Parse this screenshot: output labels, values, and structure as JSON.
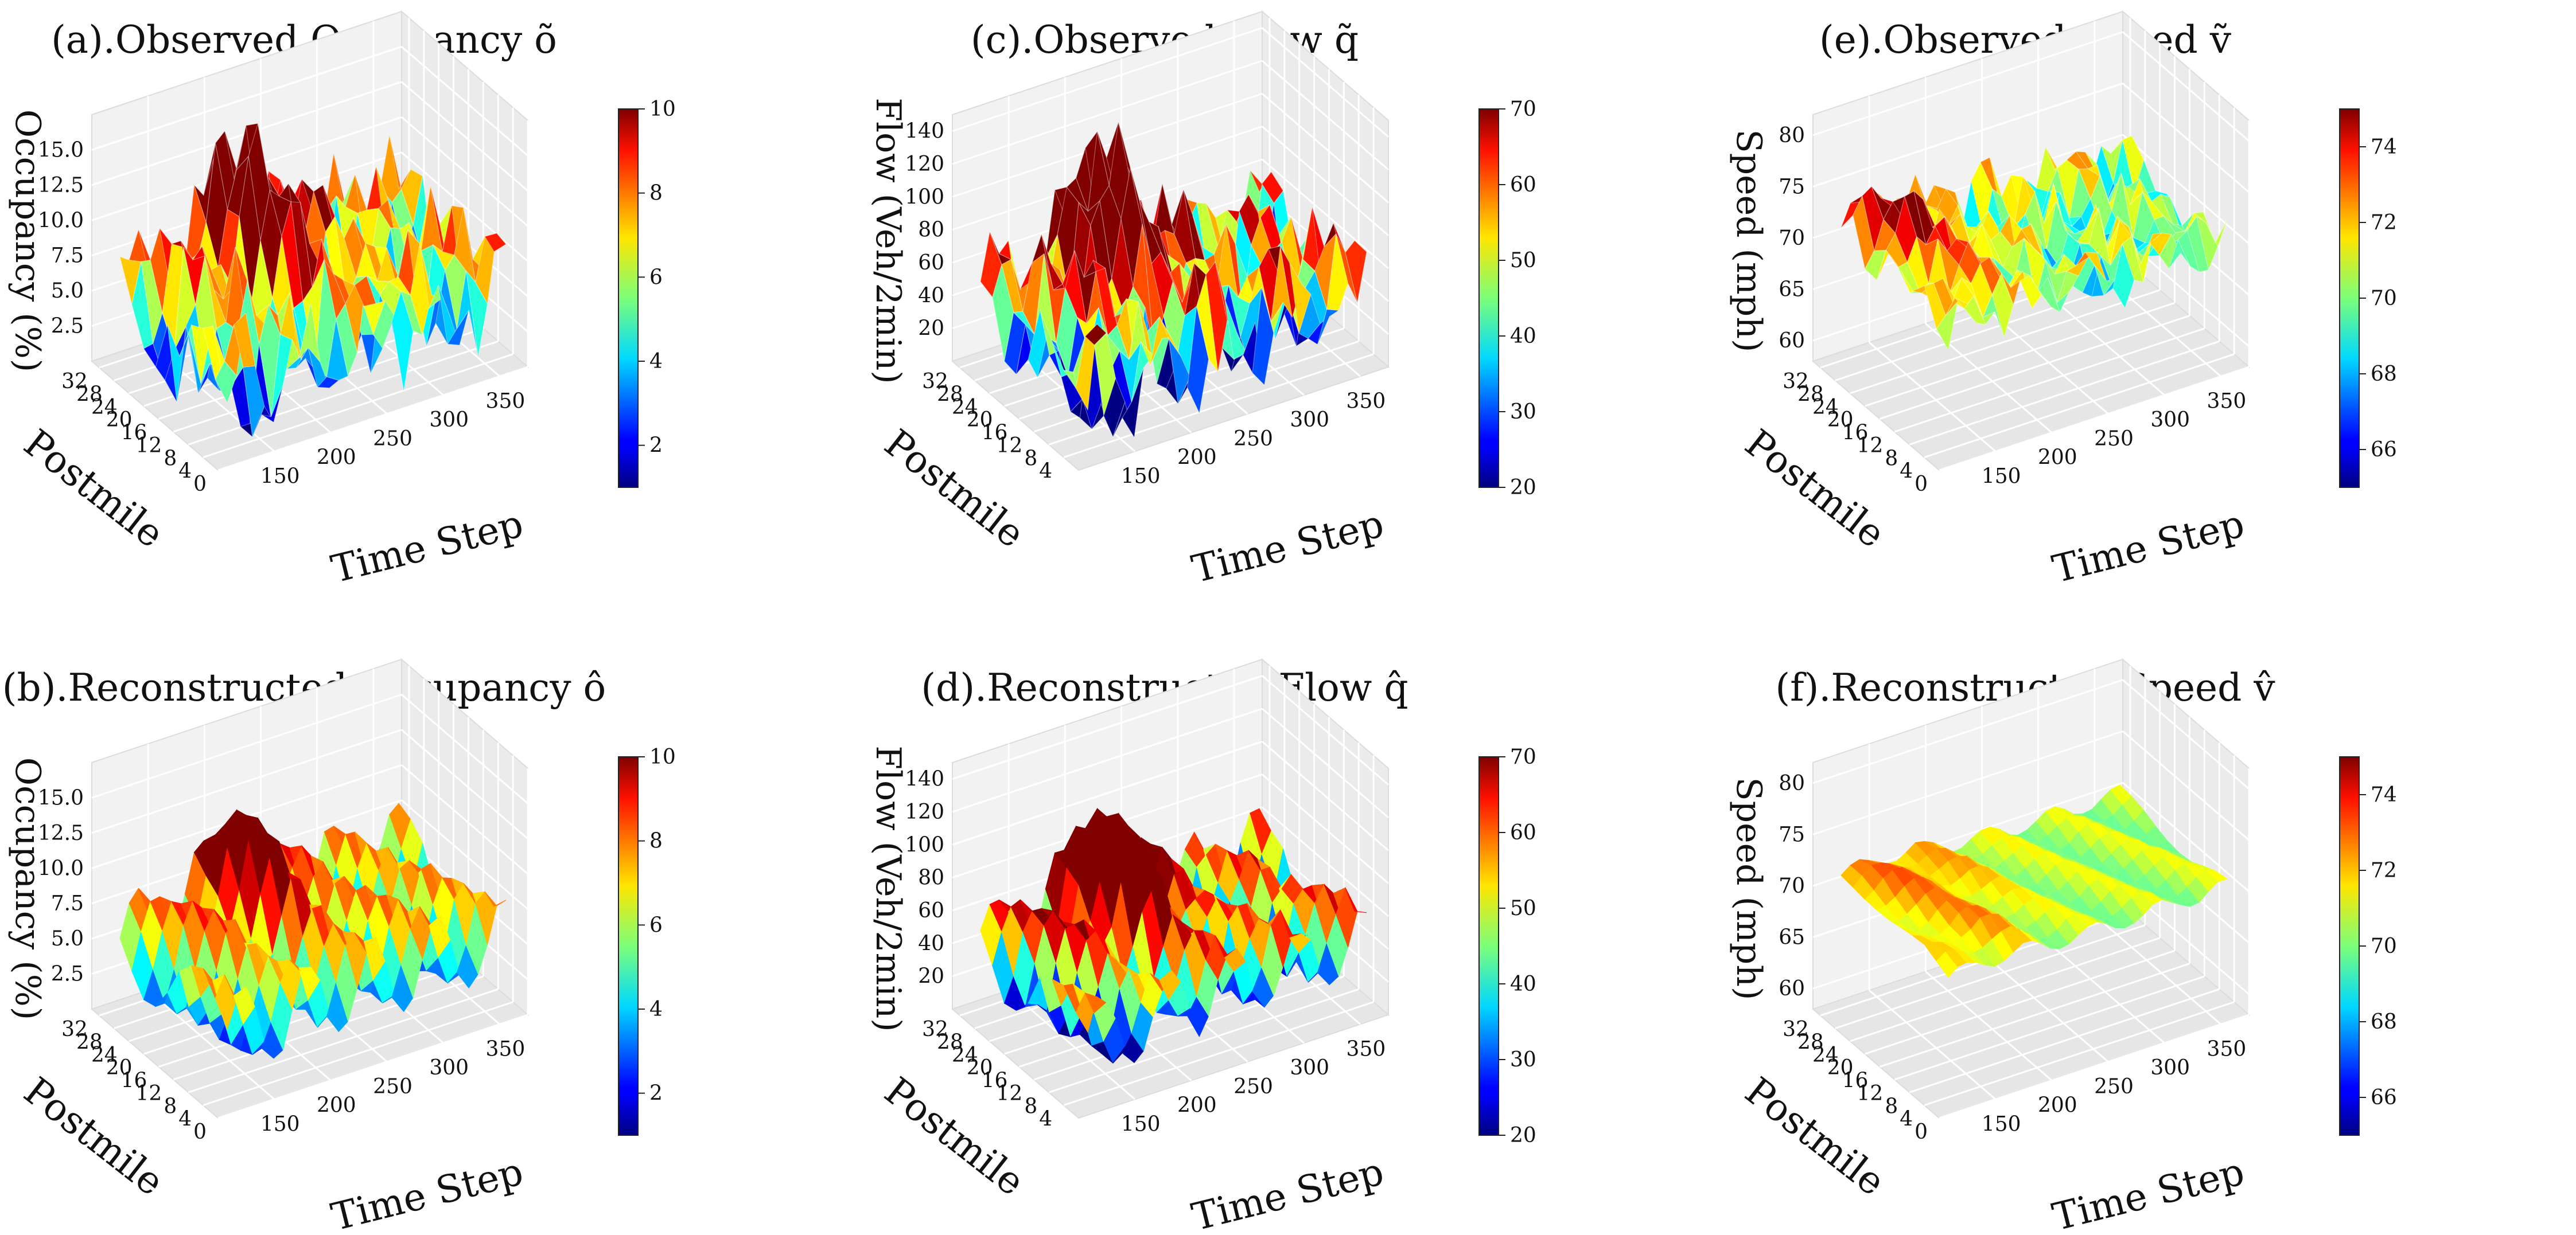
{
  "chart_data": [
    {
      "id": "a",
      "type": "surface3d",
      "title": "(a).Observed Occupancy õ",
      "xlabel": "Time Step",
      "ylabel": "Postmile",
      "zlabel": "Occupancy (%)",
      "x_ticks": [
        "150",
        "200",
        "250",
        "300",
        "350"
      ],
      "y_ticks": [
        "0",
        "4",
        "8",
        "12",
        "16",
        "20",
        "24",
        "28",
        "32"
      ],
      "z_ticks": [
        "2.5",
        "5.0",
        "7.5",
        "10.0",
        "12.5",
        "15.0"
      ],
      "zlim": [
        0,
        17.5
      ],
      "colorbar": {
        "range": [
          1,
          10
        ],
        "ticks": [
          "2",
          "4",
          "6",
          "8",
          "10"
        ]
      },
      "x_range": [
        100,
        375
      ],
      "y_range": [
        0,
        34
      ],
      "surface": {
        "base": 5.5,
        "peak": 13,
        "peak_x": 200,
        "peak_y": 24,
        "spread_x": 45,
        "spread_y": 10,
        "ridge": 3,
        "noise": 2.5,
        "low_zone": 2.2,
        "smooth": false
      }
    },
    {
      "id": "b",
      "type": "surface3d",
      "title": "(b).Reconstructed Occupancy ô",
      "xlabel": "Time Step",
      "ylabel": "Postmile",
      "zlabel": "Occupancy (%)",
      "x_ticks": [
        "150",
        "200",
        "250",
        "300",
        "350"
      ],
      "y_ticks": [
        "0",
        "4",
        "8",
        "12",
        "16",
        "20",
        "24",
        "28",
        "32"
      ],
      "z_ticks": [
        "2.5",
        "5.0",
        "7.5",
        "10.0",
        "12.5",
        "15.0"
      ],
      "zlim": [
        0,
        17.5
      ],
      "colorbar": {
        "range": [
          1,
          10
        ],
        "ticks": [
          "2",
          "4",
          "6",
          "8",
          "10"
        ]
      },
      "x_range": [
        100,
        375
      ],
      "y_range": [
        0,
        34
      ],
      "surface": {
        "base": 5.5,
        "peak": 11,
        "peak_x": 200,
        "peak_y": 24,
        "spread_x": 45,
        "spread_y": 10,
        "ridge": 3,
        "noise": 0.3,
        "low_zone": 1.0,
        "smooth": true
      }
    },
    {
      "id": "c",
      "type": "surface3d",
      "title": "(c).Observed Flow q̃",
      "xlabel": "Time Step",
      "ylabel": "Postmile",
      "zlabel": "Flow (Veh/2min)",
      "x_ticks": [
        "150",
        "200",
        "250",
        "300",
        "350"
      ],
      "y_ticks": [
        "4",
        "8",
        "12",
        "16",
        "20",
        "24",
        "28",
        "32"
      ],
      "z_ticks": [
        "20",
        "40",
        "60",
        "80",
        "100",
        "120",
        "140"
      ],
      "zlim": [
        0,
        150
      ],
      "colorbar": {
        "range": [
          20,
          70
        ],
        "ticks": [
          "20",
          "30",
          "40",
          "50",
          "60",
          "70"
        ]
      },
      "x_range": [
        100,
        375
      ],
      "y_range": [
        0,
        34
      ],
      "surface": {
        "base": 45,
        "peak": 110,
        "peak_x": 200,
        "peak_y": 24,
        "spread_x": 45,
        "spread_y": 10,
        "ridge": 20,
        "noise": 22,
        "low_zone": 15,
        "smooth": false
      }
    },
    {
      "id": "d",
      "type": "surface3d",
      "title": "(d).Reconstructed Flow q̂",
      "xlabel": "Time Step",
      "ylabel": "Postmile",
      "zlabel": "Flow (Veh/2min)",
      "x_ticks": [
        "150",
        "200",
        "250",
        "300",
        "350"
      ],
      "y_ticks": [
        "4",
        "8",
        "12",
        "16",
        "20",
        "24",
        "28",
        "32"
      ],
      "z_ticks": [
        "20",
        "40",
        "60",
        "80",
        "100",
        "120",
        "140"
      ],
      "zlim": [
        0,
        150
      ],
      "colorbar": {
        "range": [
          20,
          70
        ],
        "ticks": [
          "20",
          "30",
          "40",
          "50",
          "60",
          "70"
        ]
      },
      "x_range": [
        100,
        375
      ],
      "y_range": [
        0,
        34
      ],
      "surface": {
        "base": 45,
        "peak": 100,
        "peak_x": 200,
        "peak_y": 24,
        "spread_x": 45,
        "spread_y": 10,
        "ridge": 22,
        "noise": 6,
        "low_zone": 15,
        "smooth": true
      }
    },
    {
      "id": "e",
      "type": "surface3d",
      "title": "(e).Observed Speed ṽ",
      "xlabel": "Time Step",
      "ylabel": "Postmile",
      "zlabel": "Speed (mph)",
      "x_ticks": [
        "150",
        "200",
        "250",
        "300",
        "350"
      ],
      "y_ticks": [
        "0",
        "4",
        "8",
        "12",
        "16",
        "20",
        "24",
        "28",
        "32"
      ],
      "z_ticks": [
        "60",
        "65",
        "70",
        "75",
        "80"
      ],
      "zlim": [
        58,
        82
      ],
      "colorbar": {
        "range": [
          65,
          75
        ],
        "ticks": [
          "66",
          "68",
          "70",
          "72",
          "74"
        ]
      },
      "x_range": [
        100,
        375
      ],
      "y_range": [
        0,
        34
      ],
      "surface": {
        "base": 70,
        "peak": 74,
        "peak_x": 130,
        "peak_y": 26,
        "spread_x": 60,
        "spread_y": 12,
        "ridge": 1.5,
        "noise": 2.2,
        "low_zone": -2.5,
        "smooth": false
      }
    },
    {
      "id": "f",
      "type": "surface3d",
      "title": "(f).Reconstructed Speed v̂",
      "xlabel": "Time Step",
      "ylabel": "Postmile",
      "zlabel": "Speed (mph)",
      "x_ticks": [
        "150",
        "200",
        "250",
        "300",
        "350"
      ],
      "y_ticks": [
        "0",
        "4",
        "8",
        "12",
        "16",
        "20",
        "24",
        "28",
        "32"
      ],
      "z_ticks": [
        "60",
        "65",
        "70",
        "75",
        "80"
      ],
      "zlim": [
        58,
        82
      ],
      "colorbar": {
        "range": [
          65,
          75
        ],
        "ticks": [
          "66",
          "68",
          "70",
          "72",
          "74"
        ]
      },
      "x_range": [
        100,
        375
      ],
      "y_range": [
        0,
        34
      ],
      "surface": {
        "base": 70.5,
        "peak": 72.5,
        "peak_x": 140,
        "peak_y": 26,
        "spread_x": 70,
        "spread_y": 12,
        "ridge": 0.8,
        "noise": 0.1,
        "low_zone": -1.5,
        "smooth": true
      }
    }
  ]
}
